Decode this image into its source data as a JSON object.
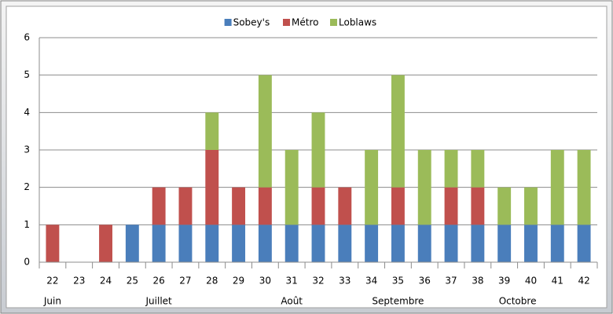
{
  "chart_data": {
    "type": "stacked_bar",
    "categories": [
      "22",
      "23",
      "24",
      "25",
      "26",
      "27",
      "28",
      "29",
      "30",
      "31",
      "32",
      "33",
      "34",
      "35",
      "36",
      "37",
      "38",
      "39",
      "40",
      "41",
      "42"
    ],
    "month_groups": [
      {
        "label": "Juin",
        "first": 0,
        "count": 1
      },
      {
        "label": "Juillet",
        "first": 1,
        "count": 7
      },
      {
        "label": "Août",
        "first": 8,
        "count": 3
      },
      {
        "label": "Septembre",
        "first": 11,
        "count": 5
      },
      {
        "label": "Octobre",
        "first": 16,
        "count": 4
      }
    ],
    "series": [
      {
        "name": "Sobey's",
        "color": "#4a7ebb",
        "values": [
          0,
          0,
          0,
          1,
          1,
          1,
          1,
          1,
          1,
          1,
          1,
          1,
          1,
          1,
          1,
          1,
          1,
          1,
          1,
          1,
          1
        ]
      },
      {
        "name": "Métro",
        "color": "#c0504d",
        "values": [
          1,
          0,
          1,
          0,
          1,
          1,
          2,
          1,
          1,
          0,
          1,
          1,
          0,
          1,
          0,
          1,
          1,
          0,
          0,
          0,
          0
        ]
      },
      {
        "name": "Loblaws",
        "color": "#9bbb59",
        "values": [
          0,
          0,
          0,
          0,
          0,
          0,
          1,
          0,
          3,
          2,
          2,
          0,
          2,
          3,
          2,
          1,
          1,
          1,
          1,
          2,
          2
        ]
      }
    ],
    "ylim": [
      0,
      6
    ],
    "yticks": [
      0,
      1,
      2,
      3,
      4,
      5,
      6
    ],
    "grid": true,
    "legend": "top"
  }
}
